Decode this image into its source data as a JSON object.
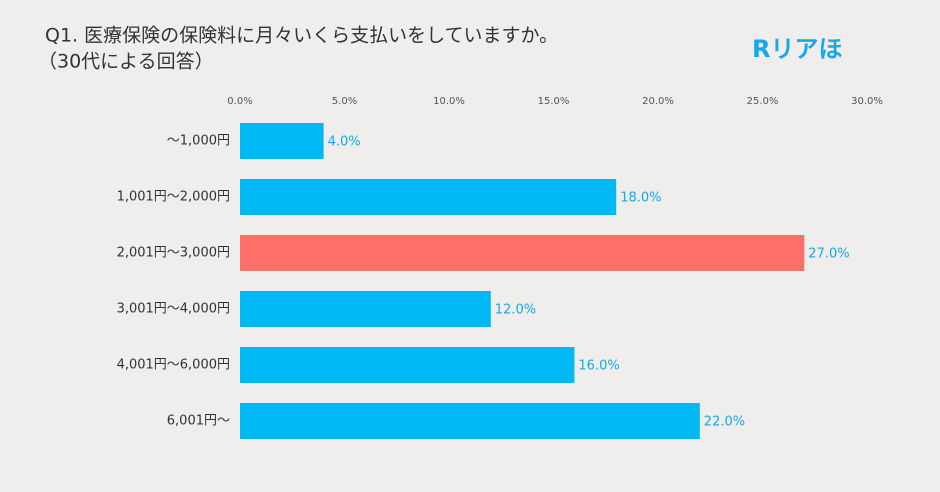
{
  "chart_data": {
    "type": "bar",
    "orientation": "horizontal",
    "title": "Q1. 医療保険の保険料に月々いくら支払いをしていますか。",
    "subtitle": "（30代による回答）",
    "logo": "Rリアほ",
    "categories": [
      "～1,000円",
      "1,001円～2,000円",
      "2,001円～3,000円",
      "3,001円～4,000円",
      "4,001円～6,000円",
      "6,001円～"
    ],
    "values": [
      4,
      18,
      27,
      12,
      16,
      22
    ],
    "value_labels": [
      "4.0%",
      "18.0%",
      "27.0%",
      "12.0%",
      "16.0%",
      "22.0%"
    ],
    "colors": [
      "#00b9f4",
      "#00b9f4",
      "#ff6f69",
      "#00b9f4",
      "#00b9f4",
      "#00b9f4"
    ],
    "xlim": [
      0,
      30
    ],
    "xticks": [
      {
        "value": 0,
        "label": "0.0%"
      },
      {
        "value": 5,
        "label": "5.0%"
      },
      {
        "value": 10,
        "label": "10.0%"
      },
      {
        "value": 15,
        "label": "15.0%"
      },
      {
        "value": 20,
        "label": "20.0%"
      },
      {
        "value": 25,
        "label": "25.0%"
      },
      {
        "value": 30,
        "label": "30.0%"
      }
    ],
    "grid": false
  }
}
